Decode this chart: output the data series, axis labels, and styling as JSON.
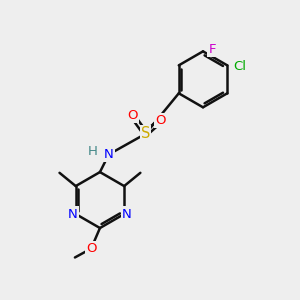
{
  "bg_color": "#eeeeee",
  "bond_color": "#111111",
  "bond_width": 1.8,
  "atom_colors": {
    "N": "#0000ff",
    "O": "#ff0000",
    "S": "#ccaa00",
    "Cl": "#00aa00",
    "F": "#cc00cc",
    "H": "#448888",
    "C": "#111111"
  },
  "font_size": 9.5,
  "fig_size": [
    3.0,
    3.0
  ],
  "dpi": 100,
  "scale": 10.0
}
